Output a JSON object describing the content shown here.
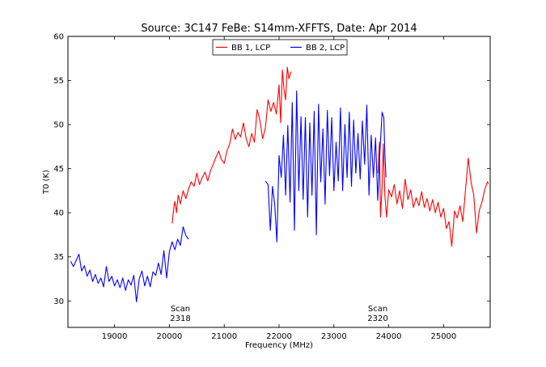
{
  "chart_data": {
    "type": "line",
    "title": "Source: 3C147 FeBe: S14mm-XFFTS, Date: Apr 2014",
    "xlabel": "Frequency (MHz)",
    "ylabel": "T0 (K)",
    "xlim": [
      18150,
      25850
    ],
    "ylim": [
      27,
      60
    ],
    "xticks": [
      19000,
      20000,
      21000,
      22000,
      23000,
      24000,
      25000
    ],
    "yticks": [
      30,
      35,
      40,
      45,
      50,
      55,
      60
    ],
    "grid": false,
    "legend_position": "top-center",
    "series": [
      {
        "name": "BB 1, LCP",
        "color": "#ff0000",
        "points": [
          [
            20050,
            38.8
          ],
          [
            20080,
            40.5
          ],
          [
            20100,
            41.3
          ],
          [
            20130,
            40.0
          ],
          [
            20160,
            42.0
          ],
          [
            20200,
            41.0
          ],
          [
            20250,
            42.5
          ],
          [
            20300,
            41.6
          ],
          [
            20350,
            42.7
          ],
          [
            20400,
            43.5
          ],
          [
            20450,
            43.0
          ],
          [
            20500,
            44.5
          ],
          [
            20550,
            43.2
          ],
          [
            20600,
            44.0
          ],
          [
            20650,
            44.6
          ],
          [
            20700,
            43.6
          ],
          [
            20750,
            44.8
          ],
          [
            20800,
            45.5
          ],
          [
            20850,
            46.3
          ],
          [
            20900,
            47.0
          ],
          [
            20950,
            46.0
          ],
          [
            21000,
            45.6
          ],
          [
            21050,
            47.0
          ],
          [
            21100,
            47.8
          ],
          [
            21150,
            49.5
          ],
          [
            21200,
            48.3
          ],
          [
            21250,
            49.1
          ],
          [
            21300,
            48.6
          ],
          [
            21350,
            50.2
          ],
          [
            21400,
            48.4
          ],
          [
            21450,
            47.5
          ],
          [
            21500,
            49.0
          ],
          [
            21550,
            48.0
          ],
          [
            21600,
            51.7
          ],
          [
            21650,
            50.5
          ],
          [
            21700,
            48.4
          ],
          [
            21750,
            49.6
          ],
          [
            21800,
            52.8
          ],
          [
            21850,
            51.5
          ],
          [
            21900,
            52.5
          ],
          [
            21950,
            51.2
          ],
          [
            22000,
            54.5
          ],
          [
            22030,
            50.2
          ],
          [
            22060,
            56.2
          ],
          [
            22090,
            54.0
          ],
          [
            22120,
            52.8
          ],
          [
            22150,
            56.5
          ],
          [
            22180,
            55.2
          ],
          [
            22220,
            56.0
          ]
        ]
      },
      {
        "name": "BB 1, LCP",
        "color": "#ff0000",
        "points": [
          [
            23800,
            44.5
          ],
          [
            23830,
            48.0
          ],
          [
            23850,
            39.5
          ],
          [
            23880,
            43.0
          ],
          [
            23900,
            47.8
          ],
          [
            23930,
            42.0
          ],
          [
            23960,
            39.5
          ],
          [
            24000,
            42.6
          ],
          [
            24050,
            41.8
          ],
          [
            24100,
            43.2
          ],
          [
            24150,
            41.0
          ],
          [
            24200,
            42.5
          ],
          [
            24250,
            40.5
          ],
          [
            24300,
            43.8
          ],
          [
            24350,
            41.5
          ],
          [
            24400,
            42.6
          ],
          [
            24450,
            40.6
          ],
          [
            24500,
            41.7
          ],
          [
            24550,
            40.8
          ],
          [
            24600,
            42.4
          ],
          [
            24650,
            40.6
          ],
          [
            24700,
            41.6
          ],
          [
            24750,
            40.2
          ],
          [
            24800,
            41.5
          ],
          [
            24850,
            40.0
          ],
          [
            24900,
            41.2
          ],
          [
            24950,
            39.5
          ],
          [
            25000,
            40.5
          ],
          [
            25050,
            38.2
          ],
          [
            25100,
            39.0
          ],
          [
            25150,
            36.2
          ],
          [
            25200,
            40.2
          ],
          [
            25250,
            39.4
          ],
          [
            25300,
            40.8
          ],
          [
            25350,
            39.0
          ],
          [
            25400,
            42.6
          ],
          [
            25450,
            46.2
          ],
          [
            25500,
            43.5
          ],
          [
            25550,
            42.0
          ],
          [
            25600,
            37.7
          ],
          [
            25650,
            40.2
          ],
          [
            25700,
            41.2
          ],
          [
            25750,
            42.6
          ],
          [
            25800,
            43.5
          ],
          [
            25820,
            43.3
          ]
        ]
      },
      {
        "name": "BB 2, LCP",
        "color": "#0000ff",
        "points": [
          [
            18200,
            34.5
          ],
          [
            18250,
            33.9
          ],
          [
            18300,
            34.6
          ],
          [
            18350,
            35.3
          ],
          [
            18400,
            33.4
          ],
          [
            18450,
            34.0
          ],
          [
            18500,
            32.8
          ],
          [
            18550,
            33.5
          ],
          [
            18600,
            32.2
          ],
          [
            18650,
            33.0
          ],
          [
            18700,
            32.0
          ],
          [
            18750,
            32.6
          ],
          [
            18800,
            31.6
          ],
          [
            18850,
            33.9
          ],
          [
            18900,
            32.2
          ],
          [
            18950,
            32.8
          ],
          [
            19000,
            31.7
          ],
          [
            19050,
            32.4
          ],
          [
            19100,
            31.5
          ],
          [
            19150,
            32.6
          ],
          [
            19200,
            31.2
          ],
          [
            19250,
            32.4
          ],
          [
            19300,
            31.8
          ],
          [
            19350,
            32.9
          ],
          [
            19400,
            29.9
          ],
          [
            19450,
            32.5
          ],
          [
            19500,
            33.4
          ],
          [
            19550,
            31.7
          ],
          [
            19600,
            32.8
          ],
          [
            19650,
            31.6
          ],
          [
            19700,
            33.3
          ],
          [
            19750,
            32.9
          ],
          [
            19800,
            34.3
          ],
          [
            19850,
            33.0
          ],
          [
            19900,
            35.7
          ],
          [
            19950,
            32.6
          ],
          [
            20000,
            35.6
          ],
          [
            20050,
            36.7
          ],
          [
            20100,
            35.8
          ],
          [
            20150,
            37.0
          ],
          [
            20200,
            36.3
          ],
          [
            20250,
            38.4
          ],
          [
            20300,
            37.4
          ],
          [
            20350,
            37.0
          ]
        ]
      },
      {
        "name": "BB 2, LCP",
        "color": "#0000ff",
        "points": [
          [
            21750,
            43.6
          ],
          [
            21800,
            43.2
          ],
          [
            21840,
            38.0
          ],
          [
            21880,
            43.0
          ],
          [
            21920,
            41.0
          ],
          [
            21960,
            36.7
          ],
          [
            22000,
            46.5
          ],
          [
            22040,
            44.0
          ],
          [
            22080,
            48.8
          ],
          [
            22120,
            42.0
          ],
          [
            22160,
            49.9
          ],
          [
            22200,
            41.2
          ],
          [
            22240,
            52.5
          ],
          [
            22280,
            38.0
          ],
          [
            22320,
            53.8
          ],
          [
            22360,
            42.5
          ],
          [
            22400,
            50.9
          ],
          [
            22440,
            41.5
          ],
          [
            22480,
            50.8
          ],
          [
            22520,
            39.5
          ],
          [
            22560,
            50.2
          ],
          [
            22600,
            42.0
          ],
          [
            22640,
            51.5
          ],
          [
            22680,
            37.5
          ],
          [
            22720,
            52.3
          ],
          [
            22760,
            43.5
          ],
          [
            22800,
            49.5
          ],
          [
            22840,
            41.0
          ],
          [
            22880,
            51.6
          ],
          [
            22920,
            44.2
          ],
          [
            22960,
            50.8
          ],
          [
            23000,
            42.5
          ],
          [
            23040,
            48.0
          ],
          [
            23080,
            43.6
          ],
          [
            23120,
            51.9
          ],
          [
            23160,
            42.5
          ],
          [
            23200,
            50.0
          ],
          [
            23240,
            44.0
          ],
          [
            23280,
            51.4
          ],
          [
            23320,
            43.0
          ],
          [
            23360,
            50.5
          ],
          [
            23400,
            44.5
          ],
          [
            23440,
            49.0
          ],
          [
            23480,
            43.8
          ],
          [
            23520,
            50.4
          ],
          [
            23560,
            45.5
          ],
          [
            23600,
            52.2
          ],
          [
            23640,
            42.0
          ],
          [
            23680,
            48.8
          ],
          [
            23720,
            44.0
          ],
          [
            23760,
            48.5
          ],
          [
            23800,
            41.4
          ],
          [
            23840,
            47.0
          ],
          [
            23880,
            51.4
          ],
          [
            23910,
            50.8
          ],
          [
            23930,
            46.6
          ],
          [
            23950,
            44.0
          ]
        ]
      }
    ],
    "annotations": [
      {
        "x": 20200,
        "line1": "Scan",
        "line2": "2318"
      },
      {
        "x": 23800,
        "line1": "Scan",
        "line2": "2320"
      }
    ],
    "legend": [
      {
        "label": "BB 1, LCP",
        "color": "#ff0000"
      },
      {
        "label": "BB 2, LCP",
        "color": "#0000ff"
      }
    ]
  }
}
